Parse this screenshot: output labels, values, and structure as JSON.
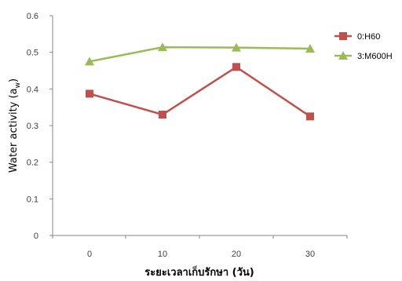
{
  "chart_data": {
    "type": "line",
    "x": [
      0,
      10,
      20,
      30
    ],
    "xlabel": "ระยะเวลาเก็บรักษา (วัน)",
    "ylabel_main": "Water  activity (a",
    "ylabel_sub": "w",
    "ylabel_close": ")",
    "xlim": [
      0,
      30
    ],
    "ylim": [
      0,
      0.6
    ],
    "x_ticks": [
      "0",
      "10",
      "20",
      "30"
    ],
    "y_ticks": [
      "0",
      "0.1",
      "0.2",
      "0.3",
      "0.4",
      "0.5",
      "0.6"
    ],
    "grid": false,
    "legend_position": "top-right",
    "series": [
      {
        "name": "0:H60",
        "values": [
          0.387,
          0.33,
          0.46,
          0.325
        ],
        "color": "#c0504d",
        "marker": "square"
      },
      {
        "name": "3:M600H",
        "values": [
          0.475,
          0.514,
          0.513,
          0.51
        ],
        "color": "#9bbb59",
        "marker": "triangle"
      }
    ]
  }
}
